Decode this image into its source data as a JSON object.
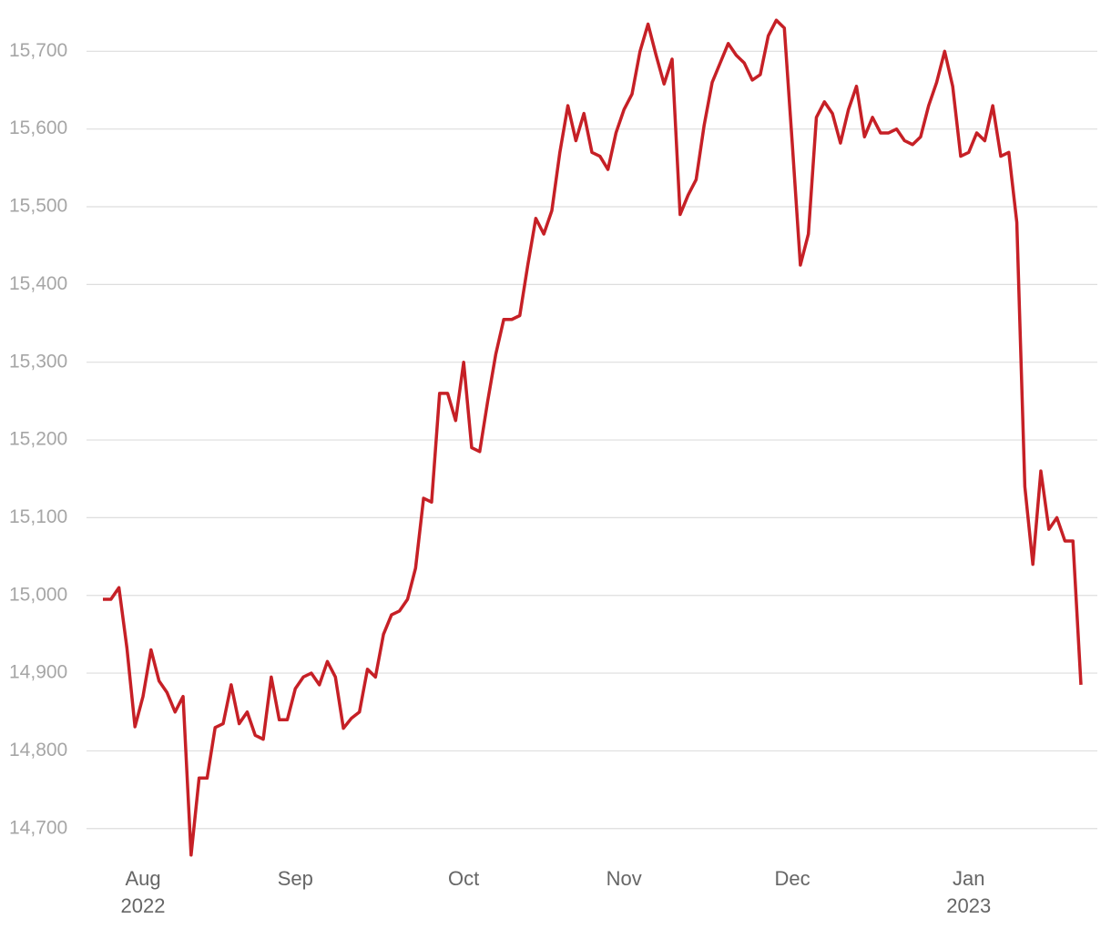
{
  "chart_data": {
    "type": "line",
    "categories": [
      null,
      null,
      null,
      null,
      null,
      "Aug 2022",
      null,
      null,
      null,
      null,
      null,
      null,
      null,
      null,
      null,
      null,
      null,
      null,
      null,
      null,
      null,
      null,
      null,
      null,
      "Sep",
      null,
      null,
      null,
      null,
      null,
      null,
      null,
      null,
      null,
      null,
      null,
      null,
      null,
      null,
      null,
      null,
      null,
      null,
      null,
      null,
      "Oct",
      null,
      null,
      null,
      null,
      null,
      null,
      null,
      null,
      null,
      null,
      null,
      null,
      null,
      null,
      null,
      null,
      null,
      null,
      null,
      "Nov",
      null,
      null,
      null,
      null,
      null,
      null,
      null,
      null,
      null,
      null,
      null,
      null,
      null,
      null,
      null,
      null,
      null,
      null,
      null,
      null,
      "Dec",
      null,
      null,
      null,
      null,
      null,
      null,
      null,
      null,
      null,
      null,
      null,
      null,
      null,
      null,
      null,
      null,
      null,
      null,
      null,
      null,
      null,
      "Jan 2023",
      null,
      null,
      null,
      null,
      null,
      null,
      null,
      null,
      null,
      null,
      null,
      null,
      null,
      null
    ],
    "values": [
      14995,
      14995,
      15010,
      14932,
      14831,
      14870,
      14930,
      14890,
      14875,
      14850,
      14870,
      14666,
      14765,
      14765,
      14830,
      14835,
      14885,
      14835,
      14850,
      14820,
      14815,
      14895,
      14840,
      14840,
      14880,
      14895,
      14900,
      14885,
      14915,
      14895,
      14829,
      14842,
      14850,
      14905,
      14895,
      14950,
      14975,
      14980,
      14995,
      15035,
      15125,
      15120,
      15260,
      15260,
      15225,
      15300,
      15190,
      15185,
      15250,
      15310,
      15355,
      15355,
      15360,
      15425,
      15485,
      15465,
      15495,
      15570,
      15630,
      15585,
      15620,
      15570,
      15565,
      15548,
      15595,
      15625,
      15645,
      15700,
      15735,
      15695,
      15658,
      15690,
      15490,
      15515,
      15535,
      15605,
      15660,
      15685,
      15710,
      15695,
      15685,
      15663,
      15670,
      15720,
      15740,
      15730,
      15580,
      15425,
      15465,
      15615,
      15635,
      15620,
      15582,
      15625,
      15655,
      15590,
      15615,
      15595,
      15595,
      15600,
      15585,
      15580,
      15590,
      15630,
      15660,
      15700,
      15655,
      15565,
      15570,
      15595,
      15585,
      15630,
      15565,
      15570,
      15480,
      15140,
      15040,
      15160,
      15085,
      15100,
      15070,
      15070,
      14885
    ],
    "color": "#c62026",
    "ylim": [
      14647,
      15766
    ],
    "yticks": [
      {
        "value": 14700,
        "label": "14,700"
      },
      {
        "value": 14800,
        "label": "14,800"
      },
      {
        "value": 14900,
        "label": "14,900"
      },
      {
        "value": 15000,
        "label": "15,000"
      },
      {
        "value": 15100,
        "label": "15,100"
      },
      {
        "value": 15200,
        "label": "15,200"
      },
      {
        "value": 15300,
        "label": "15,300"
      },
      {
        "value": 15400,
        "label": "15,400"
      },
      {
        "value": 15500,
        "label": "15,500"
      },
      {
        "value": 15600,
        "label": "15,600"
      },
      {
        "value": 15700,
        "label": "15,700"
      }
    ],
    "grid": true
  }
}
